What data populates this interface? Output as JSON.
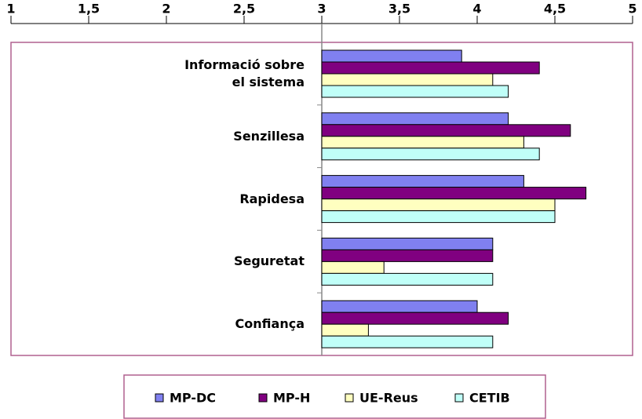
{
  "chart_data": {
    "type": "bar",
    "orientation": "horizontal",
    "categories": [
      "Informació sobre\nel sistema",
      "Senzillesa",
      "Rapidesa",
      "Seguretat",
      "Confiança"
    ],
    "series": [
      {
        "name": "MP-DC",
        "color": "#8080f0",
        "values": [
          3.9,
          4.2,
          4.3,
          4.1,
          4.0
        ]
      },
      {
        "name": "MP-H",
        "color": "#800080",
        "values": [
          4.4,
          4.6,
          4.7,
          4.1,
          4.2
        ]
      },
      {
        "name": "UE-Reus",
        "color": "#ffffc0",
        "values": [
          4.1,
          4.3,
          4.5,
          3.4,
          3.3
        ]
      },
      {
        "name": "CETIB",
        "color": "#c0fff8",
        "values": [
          4.2,
          4.4,
          4.5,
          4.1,
          4.1
        ]
      }
    ],
    "xlim": [
      1,
      5
    ],
    "xticks": [
      1,
      {
        "value": 1.5,
        "label": "1,5"
      },
      2,
      {
        "value": 2.5,
        "label": "2,5"
      },
      3,
      {
        "value": 3.5,
        "label": "3,5"
      },
      4,
      {
        "value": 4.5,
        "label": "4,5"
      },
      5
    ],
    "baseline": 3,
    "legend": "bottom"
  }
}
